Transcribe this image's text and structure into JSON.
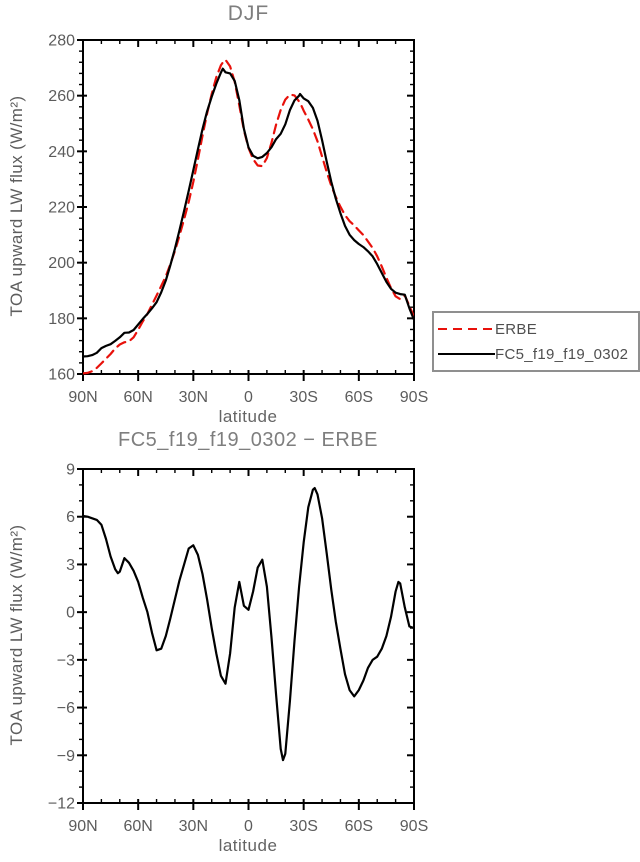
{
  "page": {
    "background": "#ffffff"
  },
  "colors": {
    "axis": "#000000",
    "tick_label": "#5c5c5c",
    "title_gray": "#7e7e7e",
    "legend_border": "#8f8f8f",
    "erbe_red": "#e8110b",
    "model_black": "#000000"
  },
  "legend": {
    "items": [
      {
        "label": "ERBE",
        "color": "#e8110b",
        "dashed": true
      },
      {
        "label": "FC5_f19_f19_0302",
        "color": "#000000",
        "dashed": false
      }
    ]
  },
  "chart_data": [
    {
      "id": "top",
      "type": "line",
      "title": "DJF",
      "xlabel": "latitude",
      "ylabel": "TOA upward LW flux (W/m²)",
      "xlim": [
        90,
        -90
      ],
      "ylim": [
        160,
        280
      ],
      "grid": false,
      "legend_position": "outside-right-bottom",
      "yticks": [
        {
          "v": 160,
          "t": "160"
        },
        {
          "v": 180,
          "t": "180"
        },
        {
          "v": 200,
          "t": "200"
        },
        {
          "v": 220,
          "t": "220"
        },
        {
          "v": 240,
          "t": "240"
        },
        {
          "v": 260,
          "t": "260"
        },
        {
          "v": 280,
          "t": "280"
        }
      ],
      "ytick_minor_step": 4,
      "xticks": [
        {
          "v": 90,
          "t": "90N"
        },
        {
          "v": 60,
          "t": "60N"
        },
        {
          "v": 30,
          "t": "30N"
        },
        {
          "v": 0,
          "t": "0"
        },
        {
          "v": -30,
          "t": "30S"
        },
        {
          "v": -60,
          "t": "60S"
        },
        {
          "v": -90,
          "t": "90S"
        }
      ],
      "xtick_minor_step": 10,
      "x": [
        90,
        87.5,
        85,
        82.5,
        80,
        77.5,
        75,
        72.5,
        70,
        67.5,
        65,
        62.5,
        60,
        57.5,
        55,
        52.5,
        50,
        47.5,
        45,
        42.5,
        40,
        37.5,
        35,
        32.5,
        30,
        27.5,
        25,
        22.5,
        20,
        17.5,
        15,
        14,
        12.5,
        10,
        7.5,
        5,
        2.5,
        0,
        -2.5,
        -5,
        -7.5,
        -10,
        -12.5,
        -15,
        -17.5,
        -20,
        -22.5,
        -25,
        -27.5,
        -28,
        -30,
        -32.5,
        -35,
        -37.5,
        -40,
        -42.5,
        -45,
        -47.5,
        -50,
        -52.5,
        -55,
        -57.5,
        -60,
        -62.5,
        -65,
        -67.5,
        -70,
        -72.5,
        -75,
        -77.5,
        -80,
        -82.5,
        -85,
        -87.5,
        -90
      ],
      "series": [
        {
          "name": "ERBE",
          "color": "#e8110b",
          "dashed": true,
          "values": [
            160.2,
            160.4,
            161.0,
            162.2,
            163.8,
            165.5,
            167.2,
            169.2,
            170.6,
            171.4,
            171.7,
            173.2,
            175.9,
            178.9,
            181.6,
            184.9,
            188.2,
            191.6,
            195.1,
            199.4,
            204.2,
            209.7,
            215.6,
            221.8,
            229.0,
            237.1,
            245.6,
            253.6,
            260.6,
            266.6,
            270.9,
            271.9,
            272.9,
            270.5,
            265.0,
            256.5,
            247.6,
            241.2,
            237.2,
            234.9,
            234.7,
            237.6,
            243.1,
            249.6,
            254.9,
            258.6,
            260.4,
            260.1,
            257.9,
            257.5,
            254.6,
            251.4,
            247.9,
            243.6,
            238.1,
            232.6,
            227.6,
            223.6,
            220.1,
            217.1,
            214.9,
            213.4,
            211.6,
            209.9,
            207.6,
            205.3,
            202.3,
            198.6,
            194.6,
            190.9,
            187.9,
            186.9,
            188.2,
            184.5,
            180.5
          ]
        },
        {
          "name": "FC5_f19_f19_0302",
          "color": "#000000",
          "dashed": false,
          "values": [
            166.3,
            166.4,
            166.8,
            167.6,
            169.3,
            170.1,
            170.7,
            171.9,
            173.2,
            174.8,
            174.9,
            175.8,
            177.8,
            179.8,
            181.6,
            183.6,
            185.8,
            189.3,
            193.6,
            199.0,
            205.0,
            211.7,
            218.6,
            225.8,
            233.2,
            240.7,
            248.0,
            254.4,
            259.6,
            264.3,
            268.3,
            269.7,
            268.4,
            268.0,
            265.3,
            258.4,
            248.1,
            241.4,
            238.4,
            237.5,
            238.0,
            239.4,
            241.5,
            244.4,
            246.3,
            249.7,
            254.8,
            258.3,
            260.0,
            260.6,
            259.0,
            258.0,
            255.6,
            251.0,
            244.0,
            236.3,
            229.0,
            223.0,
            217.8,
            213.2,
            210.0,
            208.1,
            206.7,
            205.6,
            204.1,
            202.3,
            199.5,
            196.3,
            193.1,
            190.6,
            189.2,
            188.7,
            188.5,
            183.6,
            179.5
          ]
        }
      ]
    },
    {
      "id": "bottom",
      "type": "line",
      "title": "FC5_f19_f19_0302 − ERBE",
      "xlabel": "latitude",
      "ylabel": "TOA upward LW flux (W/m²)",
      "xlim": [
        90,
        -90
      ],
      "ylim": [
        -12,
        9
      ],
      "grid": false,
      "yticks": [
        {
          "v": -12,
          "t": "−12"
        },
        {
          "v": -9,
          "t": "−9"
        },
        {
          "v": -6,
          "t": "−6"
        },
        {
          "v": -3,
          "t": "−3"
        },
        {
          "v": 0,
          "t": "0"
        },
        {
          "v": 3,
          "t": "3"
        },
        {
          "v": 6,
          "t": "6"
        },
        {
          "v": 9,
          "t": "9"
        }
      ],
      "ytick_minor_step": 1,
      "xticks": [
        {
          "v": 90,
          "t": "90N"
        },
        {
          "v": 60,
          "t": "60N"
        },
        {
          "v": 30,
          "t": "30N"
        },
        {
          "v": 0,
          "t": "0"
        },
        {
          "v": -30,
          "t": "30S"
        },
        {
          "v": -60,
          "t": "60S"
        },
        {
          "v": -90,
          "t": "90S"
        }
      ],
      "xtick_minor_step": 10,
      "x": [
        90,
        87.5,
        85,
        82.5,
        80,
        77.5,
        75,
        72.5,
        71,
        70,
        67.5,
        65,
        62.5,
        60,
        57.5,
        55,
        52.5,
        50,
        47.5,
        45,
        42.5,
        40,
        37.5,
        35,
        32.5,
        30,
        27.5,
        25,
        22.5,
        20,
        17.5,
        15,
        12.5,
        10,
        7.5,
        5,
        2.5,
        0,
        -2.5,
        -5,
        -7.5,
        -10,
        -12.5,
        -15,
        -17.5,
        -18.75,
        -20,
        -22.5,
        -25,
        -27.5,
        -30,
        -32.5,
        -35,
        -36,
        -37.5,
        -40,
        -42.5,
        -45,
        -47.5,
        -50,
        -52.5,
        -55,
        -57.5,
        -60,
        -62.5,
        -65,
        -67.5,
        -70,
        -72.5,
        -75,
        -77.5,
        -80,
        -81.5,
        -82.5,
        -85,
        -87.5,
        -90
      ],
      "series": [
        {
          "name": "FC5_f19_f19_0302 − ERBE",
          "color": "#000000",
          "dashed": false,
          "values": [
            6.05,
            6.0,
            5.9,
            5.8,
            5.5,
            4.6,
            3.5,
            2.7,
            2.45,
            2.55,
            3.4,
            3.1,
            2.6,
            1.9,
            0.9,
            0.0,
            -1.3,
            -2.4,
            -2.3,
            -1.5,
            -0.4,
            0.8,
            2.0,
            3.0,
            4.0,
            4.2,
            3.6,
            2.4,
            0.8,
            -1.0,
            -2.6,
            -4.0,
            -4.5,
            -2.6,
            0.3,
            1.9,
            0.4,
            0.15,
            1.3,
            2.8,
            3.3,
            1.6,
            -1.6,
            -5.2,
            -8.6,
            -9.3,
            -8.9,
            -5.6,
            -1.8,
            1.6,
            4.4,
            6.6,
            7.7,
            7.8,
            7.4,
            5.9,
            3.7,
            1.4,
            -0.6,
            -2.3,
            -3.9,
            -4.9,
            -5.3,
            -4.9,
            -4.3,
            -3.5,
            -3.0,
            -2.8,
            -2.3,
            -1.5,
            -0.3,
            1.3,
            1.9,
            1.8,
            0.3,
            -0.9,
            -1.0
          ]
        }
      ]
    }
  ]
}
